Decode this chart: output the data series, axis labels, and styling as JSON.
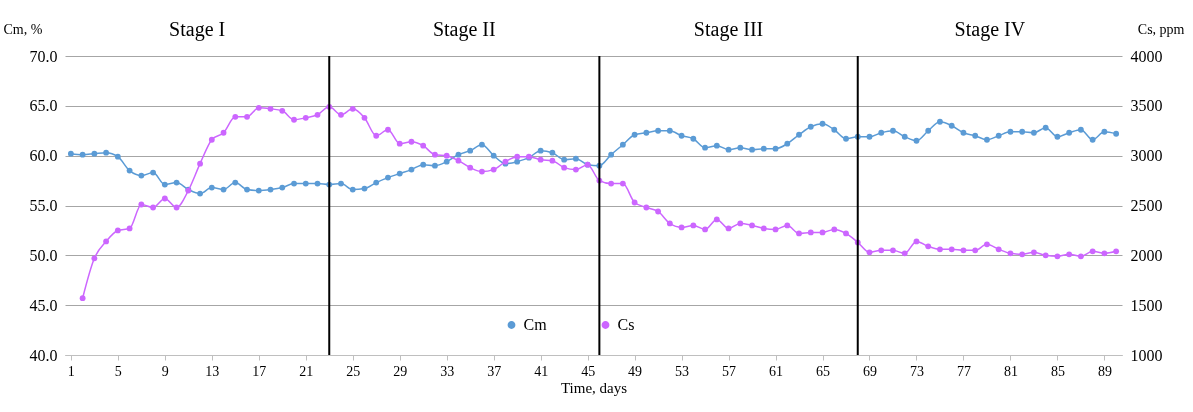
{
  "chart_data": {
    "type": "line",
    "xlabel": "Time, days",
    "ylabel": "Cm, %",
    "y2label": "Cs, ppm",
    "x": [
      1,
      2,
      3,
      4,
      5,
      6,
      7,
      8,
      9,
      10,
      11,
      12,
      13,
      14,
      15,
      16,
      17,
      18,
      19,
      20,
      21,
      22,
      23,
      24,
      25,
      26,
      27,
      28,
      29,
      30,
      31,
      32,
      33,
      34,
      35,
      36,
      37,
      38,
      39,
      40,
      41,
      42,
      43,
      44,
      45,
      46,
      47,
      48,
      49,
      50,
      51,
      52,
      53,
      54,
      55,
      56,
      57,
      58,
      59,
      60,
      61,
      62,
      63,
      64,
      65,
      66,
      67,
      68,
      69,
      70,
      71,
      72,
      73,
      74,
      75,
      76,
      77,
      78,
      79,
      80,
      81,
      82,
      83,
      84,
      85,
      86,
      87,
      88,
      89,
      90
    ],
    "xlim": [
      0.5,
      90.5
    ],
    "xticks": [
      1,
      5,
      9,
      13,
      17,
      21,
      25,
      29,
      33,
      37,
      41,
      45,
      49,
      53,
      57,
      61,
      65,
      69,
      73,
      77,
      81,
      85,
      89
    ],
    "ylim": [
      40,
      70
    ],
    "yticks": [
      {
        "value": 40,
        "label": "40.0"
      },
      {
        "value": 45,
        "label": "45.0"
      },
      {
        "value": 50,
        "label": "50.0"
      },
      {
        "value": 55,
        "label": "55.0"
      },
      {
        "value": 60,
        "label": "60.0"
      },
      {
        "value": 65,
        "label": "65.0"
      },
      {
        "value": 70,
        "label": "70.0"
      }
    ],
    "y2lim": [
      1000,
      4000
    ],
    "y2ticks": [
      1000,
      1500,
      2000,
      2500,
      3000,
      3500,
      4000
    ],
    "grid": "y",
    "legend": "bottom",
    "marker": "circle",
    "series": [
      {
        "name": "Cm",
        "color": "#5b9bd5",
        "values": [
          60.2,
          60.1,
          60.2,
          60.3,
          59.9,
          58.5,
          58.0,
          58.3,
          57.1,
          57.3,
          56.6,
          56.2,
          56.8,
          56.6,
          57.3,
          56.6,
          56.5,
          56.6,
          56.8,
          57.2,
          57.2,
          57.2,
          57.1,
          57.2,
          56.6,
          56.7,
          57.3,
          57.8,
          58.2,
          58.6,
          59.1,
          59.0,
          59.4,
          60.1,
          60.5,
          61.1,
          60.0,
          59.2,
          59.4,
          59.8,
          60.5,
          60.3,
          59.6,
          59.7,
          59.1,
          59.0,
          60.1,
          61.1,
          62.1,
          62.3,
          62.5,
          62.5,
          62.0,
          61.7,
          60.8,
          61.0,
          60.6,
          60.8,
          60.6,
          60.7,
          60.7,
          61.2,
          62.1,
          62.9,
          63.2,
          62.6,
          61.7,
          61.9,
          61.9,
          62.3,
          62.5,
          61.9,
          61.5,
          62.5,
          63.4,
          63.0,
          62.3,
          62.0,
          61.6,
          62.0,
          62.4,
          62.4,
          62.3,
          62.8,
          61.9,
          62.3,
          62.6,
          61.6,
          62.4,
          62.2
        ]
      },
      {
        "name": "Cs",
        "color": "#cc66ff",
        "axis": "y2",
        "values": [
          null,
          1570,
          1970,
          2140,
          2250,
          2270,
          2510,
          2480,
          2570,
          2480,
          2650,
          2920,
          3160,
          3230,
          3390,
          3390,
          3480,
          3470,
          3450,
          3360,
          3380,
          3410,
          3490,
          3410,
          3470,
          3380,
          3200,
          3260,
          3120,
          3140,
          3100,
          3010,
          3000,
          2950,
          2880,
          2840,
          2860,
          2940,
          2990,
          2990,
          2960,
          2950,
          2880,
          2860,
          2910,
          2750,
          2720,
          2720,
          2530,
          2480,
          2440,
          2320,
          2280,
          2300,
          2260,
          2360,
          2270,
          2320,
          2300,
          2270,
          2260,
          2300,
          2220,
          2230,
          2230,
          2260,
          2220,
          2130,
          2030,
          2050,
          2050,
          2020,
          2140,
          2090,
          2060,
          2060,
          2050,
          2050,
          2110,
          2060,
          2020,
          2010,
          2030,
          2000,
          1990,
          2010,
          1990,
          2040,
          2020,
          2040
        ]
      }
    ],
    "ref_lines": [
      {
        "axis": "x",
        "value": 23,
        "color": "#000000"
      },
      {
        "axis": "x",
        "value": 46,
        "color": "#000000"
      },
      {
        "axis": "x",
        "value": 68,
        "color": "#000000"
      }
    ],
    "annotations": [
      "Stage I",
      "Stage II",
      "Stage III",
      "Stage IV"
    ]
  }
}
